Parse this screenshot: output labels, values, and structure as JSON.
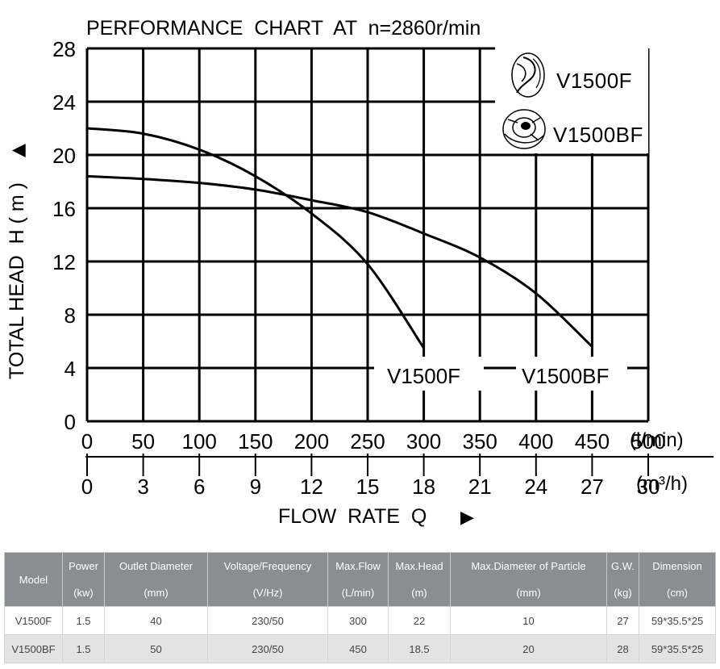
{
  "chart_data": {
    "type": "line",
    "title": "PERFORMANCE  CHART  AT  n=2860r/min",
    "ylabel": "TOTAL HEAD  H ( m )",
    "ylabel_arrow": "▲",
    "xlabel": "FLOW  RATE  Q",
    "xlabel_arrow": "▶",
    "x_unit_top": "(l/min)",
    "x_unit_bottom": "(m³/h)",
    "ylim": [
      0,
      28
    ],
    "xlim": [
      0,
      500
    ],
    "y_ticks": [
      "0",
      "4",
      "8",
      "12",
      "16",
      "20",
      "24",
      "28"
    ],
    "x_ticks_lmin": [
      "0",
      "50",
      "100",
      "150",
      "200",
      "250",
      "300",
      "350",
      "400",
      "450",
      "500"
    ],
    "x_ticks_m3h": [
      "0",
      "3",
      "6",
      "9",
      "12",
      "15",
      "18",
      "21",
      "24",
      "27",
      "30"
    ],
    "grid": true,
    "legend": "top-right",
    "series": [
      {
        "name": "V1500F",
        "x": [
          0,
          50,
          100,
          150,
          200,
          250,
          300
        ],
        "y": [
          22,
          21.6,
          20.4,
          18.4,
          15.6,
          11.8,
          5.5
        ]
      },
      {
        "name": "V1500BF",
        "x": [
          0,
          50,
          100,
          150,
          200,
          250,
          300,
          350,
          400,
          450
        ],
        "y": [
          18.4,
          18.2,
          17.9,
          17.4,
          16.6,
          15.7,
          14.1,
          12.3,
          9.6,
          5.6
        ]
      }
    ],
    "legend_entries": [
      "V1500F",
      "V1500BF"
    ],
    "line_color": "#000000"
  },
  "table": {
    "header_bg": "#8a8d92",
    "columns": [
      [
        "Model",
        ""
      ],
      [
        "Power",
        "(kw)"
      ],
      [
        "Outlet Diameter",
        "(mm)"
      ],
      [
        "Voltage/Frequency",
        "(V/Hz)"
      ],
      [
        "Max.Flow",
        "(L/min)"
      ],
      [
        "Max.Head",
        "(m)"
      ],
      [
        "Max.Diameter of Particle",
        "(mm)"
      ],
      [
        "G.W.",
        "(kg)"
      ],
      [
        "Dimension",
        "(cm)"
      ]
    ],
    "rows": [
      [
        "V1500F",
        "1.5",
        "40",
        "230/50",
        "300",
        "22",
        "10",
        "27",
        "59*35.5*25"
      ],
      [
        "V1500BF",
        "1.5",
        "50",
        "230/50",
        "450",
        "18.5",
        "20",
        "28",
        "59*35.5*25"
      ]
    ]
  }
}
